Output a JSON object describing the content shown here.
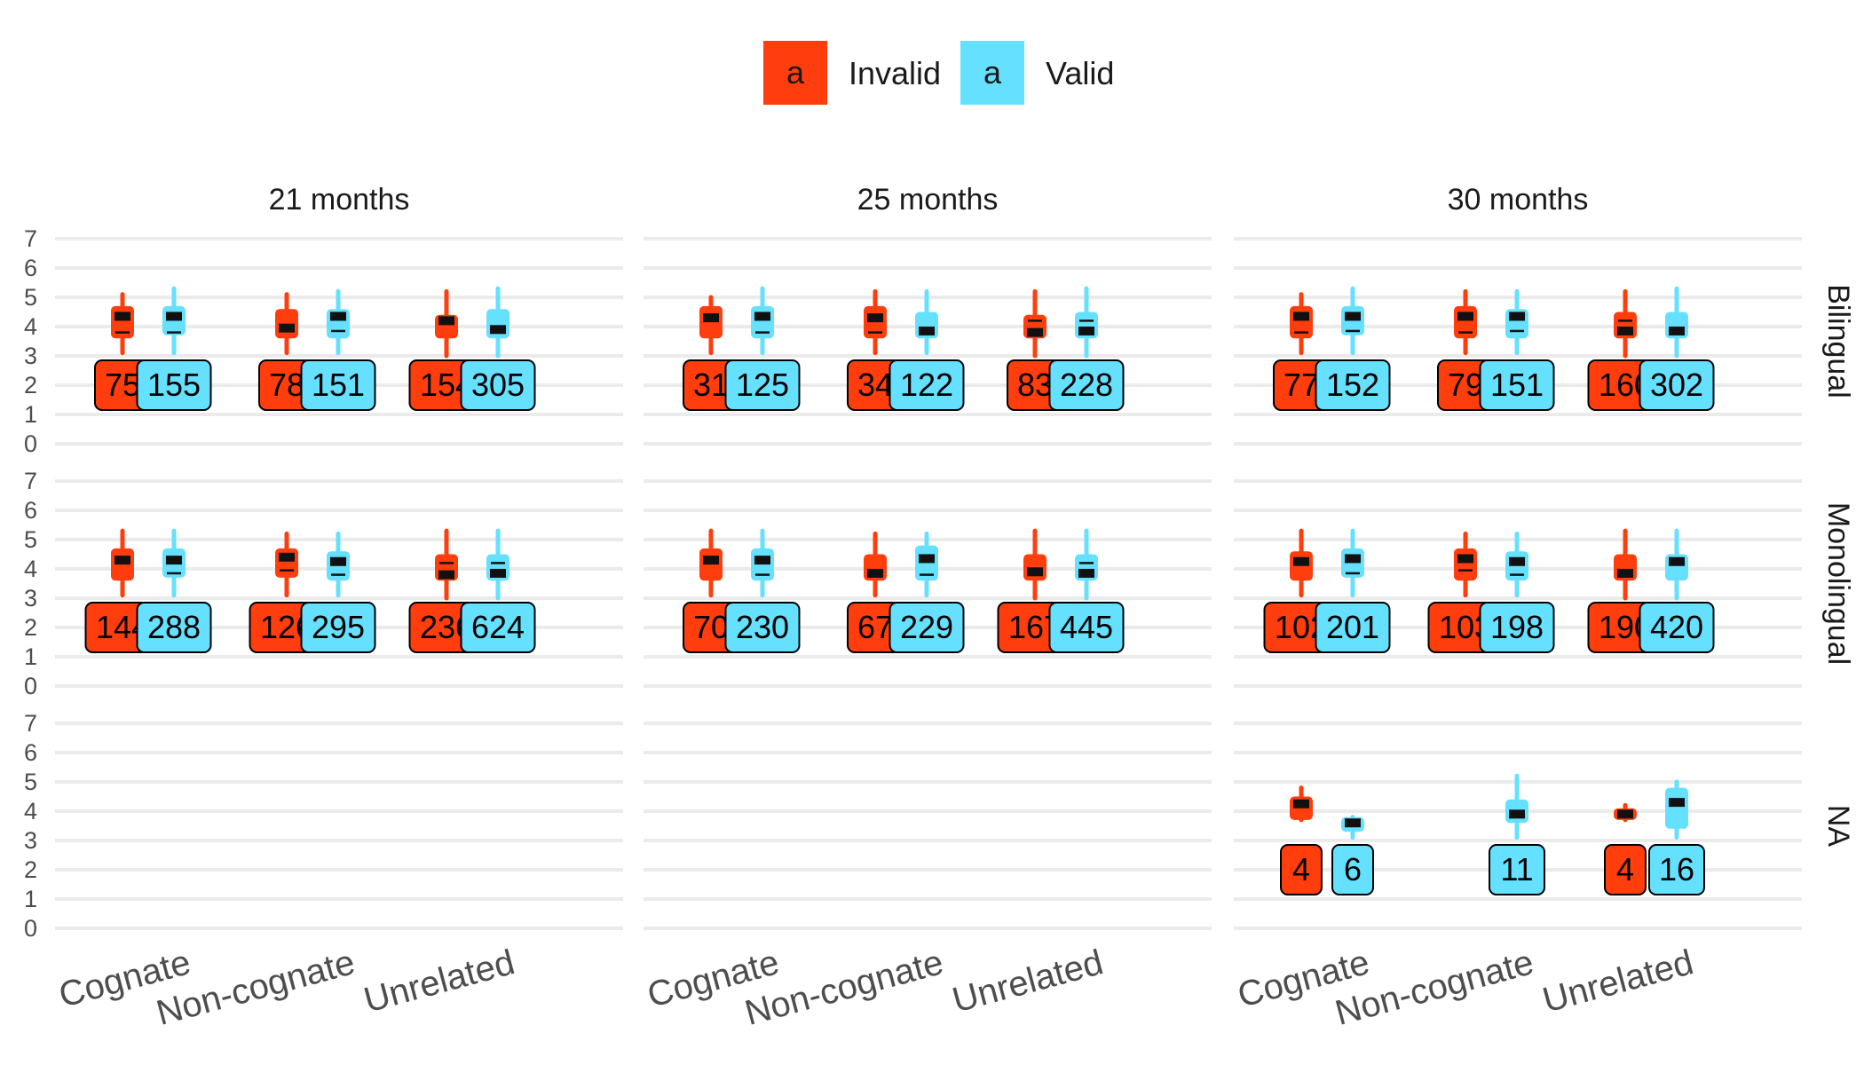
{
  "chart_data": {
    "type": "boxplot",
    "colors": {
      "Invalid": "#ff3d0d",
      "Valid": "#66e0ff"
    },
    "legend": {
      "position": "top",
      "key_label": "a",
      "entries": [
        "Invalid",
        "Valid"
      ]
    },
    "facet_cols": [
      "21 months",
      "25 months",
      "30 months"
    ],
    "facet_rows": [
      "Bilingual",
      "Monolingual",
      "NA"
    ],
    "categories": [
      "Cognate",
      "Non-cognate",
      "Unrelated"
    ],
    "y_ticks": [
      "0",
      "1",
      "2",
      "3",
      "4",
      "5",
      "6",
      "7"
    ],
    "ylim": [
      0,
      7
    ],
    "grid": true,
    "panels": [
      {
        "col": "21 months",
        "row": "Bilingual",
        "groups": [
          {
            "category": "Cognate",
            "condition": "Invalid",
            "n": "75",
            "whisker": [
              3.1,
              5.1
            ],
            "box": [
              3.6,
              4.7
            ],
            "median": 3.8,
            "mean": 4.35
          },
          {
            "category": "Cognate",
            "condition": "Valid",
            "n": "155",
            "whisker": [
              3.1,
              5.3
            ],
            "box": [
              3.7,
              4.7
            ],
            "median": 3.8,
            "mean": 4.35
          },
          {
            "category": "Non-cognate",
            "condition": "Invalid",
            "n": "78",
            "whisker": [
              3.1,
              5.1
            ],
            "box": [
              3.6,
              4.6
            ],
            "median": 3.9,
            "mean": 3.95
          },
          {
            "category": "Non-cognate",
            "condition": "Valid",
            "n": "151",
            "whisker": [
              3.1,
              5.2
            ],
            "box": [
              3.6,
              4.6
            ],
            "median": 3.85,
            "mean": 4.35
          },
          {
            "category": "Unrelated",
            "condition": "Invalid",
            "n": "154",
            "whisker": [
              3.0,
              5.2
            ],
            "box": [
              3.6,
              4.4
            ],
            "median": 4.2,
            "mean": 4.2
          },
          {
            "category": "Unrelated",
            "condition": "Valid",
            "n": "305",
            "whisker": [
              3.0,
              5.3
            ],
            "box": [
              3.6,
              4.6
            ],
            "median": 3.9,
            "mean": 3.9
          }
        ]
      },
      {
        "col": "25 months",
        "row": "Bilingual",
        "groups": [
          {
            "category": "Cognate",
            "condition": "Invalid",
            "n": "31",
            "whisker": [
              3.1,
              5.0
            ],
            "box": [
              3.6,
              4.7
            ],
            "median": 4.3,
            "mean": 4.3
          },
          {
            "category": "Cognate",
            "condition": "Valid",
            "n": "125",
            "whisker": [
              3.1,
              5.3
            ],
            "box": [
              3.6,
              4.7
            ],
            "median": 3.8,
            "mean": 4.35
          },
          {
            "category": "Non-cognate",
            "condition": "Invalid",
            "n": "34",
            "whisker": [
              3.1,
              5.2
            ],
            "box": [
              3.6,
              4.7
            ],
            "median": 3.8,
            "mean": 4.3
          },
          {
            "category": "Non-cognate",
            "condition": "Valid",
            "n": "122",
            "whisker": [
              3.1,
              5.2
            ],
            "box": [
              3.6,
              4.5
            ],
            "median": 3.85,
            "mean": 3.85
          },
          {
            "category": "Unrelated",
            "condition": "Invalid",
            "n": "83",
            "whisker": [
              3.0,
              5.2
            ],
            "box": [
              3.6,
              4.4
            ],
            "median": 4.2,
            "mean": 3.8
          },
          {
            "category": "Unrelated",
            "condition": "Valid",
            "n": "228",
            "whisker": [
              3.0,
              5.3
            ],
            "box": [
              3.6,
              4.5
            ],
            "median": 4.2,
            "mean": 3.85
          }
        ]
      },
      {
        "col": "30 months",
        "row": "Bilingual",
        "groups": [
          {
            "category": "Cognate",
            "condition": "Invalid",
            "n": "77",
            "whisker": [
              3.1,
              5.1
            ],
            "box": [
              3.6,
              4.7
            ],
            "median": 3.8,
            "mean": 4.35
          },
          {
            "category": "Cognate",
            "condition": "Valid",
            "n": "152",
            "whisker": [
              3.1,
              5.3
            ],
            "box": [
              3.7,
              4.7
            ],
            "median": 3.85,
            "mean": 4.35
          },
          {
            "category": "Non-cognate",
            "condition": "Invalid",
            "n": "79",
            "whisker": [
              3.1,
              5.2
            ],
            "box": [
              3.6,
              4.7
            ],
            "median": 3.8,
            "mean": 4.35
          },
          {
            "category": "Non-cognate",
            "condition": "Valid",
            "n": "151",
            "whisker": [
              3.1,
              5.2
            ],
            "box": [
              3.6,
              4.6
            ],
            "median": 3.85,
            "mean": 4.35
          },
          {
            "category": "Unrelated",
            "condition": "Invalid",
            "n": "160",
            "whisker": [
              3.0,
              5.2
            ],
            "box": [
              3.6,
              4.5
            ],
            "median": 4.2,
            "mean": 3.85
          },
          {
            "category": "Unrelated",
            "condition": "Valid",
            "n": "302",
            "whisker": [
              3.0,
              5.3
            ],
            "box": [
              3.6,
              4.5
            ],
            "median": 3.85,
            "mean": 3.85
          }
        ]
      },
      {
        "col": "21 months",
        "row": "Monolingual",
        "groups": [
          {
            "category": "Cognate",
            "condition": "Invalid",
            "n": "144",
            "whisker": [
              3.1,
              5.3
            ],
            "box": [
              3.6,
              4.7
            ],
            "median": 4.3,
            "mean": 4.3
          },
          {
            "category": "Cognate",
            "condition": "Valid",
            "n": "288",
            "whisker": [
              3.1,
              5.3
            ],
            "box": [
              3.7,
              4.7
            ],
            "median": 3.85,
            "mean": 4.3
          },
          {
            "category": "Non-cognate",
            "condition": "Invalid",
            "n": "126",
            "whisker": [
              3.1,
              5.2
            ],
            "box": [
              3.7,
              4.7
            ],
            "median": 3.95,
            "mean": 4.4
          },
          {
            "category": "Non-cognate",
            "condition": "Valid",
            "n": "295",
            "whisker": [
              3.1,
              5.2
            ],
            "box": [
              3.6,
              4.6
            ],
            "median": 3.8,
            "mean": 4.25
          },
          {
            "category": "Unrelated",
            "condition": "Invalid",
            "n": "236",
            "whisker": [
              3.0,
              5.3
            ],
            "box": [
              3.6,
              4.5
            ],
            "median": 4.2,
            "mean": 3.8
          },
          {
            "category": "Unrelated",
            "condition": "Valid",
            "n": "624",
            "whisker": [
              3.0,
              5.3
            ],
            "box": [
              3.6,
              4.5
            ],
            "median": 4.2,
            "mean": 3.85
          }
        ]
      },
      {
        "col": "25 months",
        "row": "Monolingual",
        "groups": [
          {
            "category": "Cognate",
            "condition": "Invalid",
            "n": "70",
            "whisker": [
              3.1,
              5.3
            ],
            "box": [
              3.6,
              4.7
            ],
            "median": 4.3,
            "mean": 4.3
          },
          {
            "category": "Cognate",
            "condition": "Valid",
            "n": "230",
            "whisker": [
              3.1,
              5.3
            ],
            "box": [
              3.6,
              4.7
            ],
            "median": 3.8,
            "mean": 4.3
          },
          {
            "category": "Non-cognate",
            "condition": "Invalid",
            "n": "67",
            "whisker": [
              3.1,
              5.2
            ],
            "box": [
              3.6,
              4.5
            ],
            "median": 3.85,
            "mean": 3.85
          },
          {
            "category": "Non-cognate",
            "condition": "Valid",
            "n": "229",
            "whisker": [
              3.1,
              5.2
            ],
            "box": [
              3.6,
              4.8
            ],
            "median": 3.8,
            "mean": 4.35
          },
          {
            "category": "Unrelated",
            "condition": "Invalid",
            "n": "167",
            "whisker": [
              3.0,
              5.3
            ],
            "box": [
              3.6,
              4.5
            ],
            "median": 3.9,
            "mean": 3.9
          },
          {
            "category": "Unrelated",
            "condition": "Valid",
            "n": "445",
            "whisker": [
              3.0,
              5.3
            ],
            "box": [
              3.6,
              4.5
            ],
            "median": 4.2,
            "mean": 3.85
          }
        ]
      },
      {
        "col": "30 months",
        "row": "Monolingual",
        "groups": [
          {
            "category": "Cognate",
            "condition": "Invalid",
            "n": "102",
            "whisker": [
              3.1,
              5.3
            ],
            "box": [
              3.6,
              4.6
            ],
            "median": 4.25,
            "mean": 4.25
          },
          {
            "category": "Cognate",
            "condition": "Valid",
            "n": "201",
            "whisker": [
              3.1,
              5.3
            ],
            "box": [
              3.7,
              4.7
            ],
            "median": 3.85,
            "mean": 4.35
          },
          {
            "category": "Non-cognate",
            "condition": "Invalid",
            "n": "103",
            "whisker": [
              3.1,
              5.2
            ],
            "box": [
              3.6,
              4.7
            ],
            "median": 3.95,
            "mean": 4.35
          },
          {
            "category": "Non-cognate",
            "condition": "Valid",
            "n": "198",
            "whisker": [
              3.1,
              5.2
            ],
            "box": [
              3.6,
              4.6
            ],
            "median": 3.8,
            "mean": 4.25
          },
          {
            "category": "Unrelated",
            "condition": "Invalid",
            "n": "190",
            "whisker": [
              3.0,
              5.3
            ],
            "box": [
              3.6,
              4.5
            ],
            "median": 3.85,
            "mean": 3.85
          },
          {
            "category": "Unrelated",
            "condition": "Valid",
            "n": "420",
            "whisker": [
              3.0,
              5.3
            ],
            "box": [
              3.6,
              4.5
            ],
            "median": 4.2,
            "mean": 4.25
          }
        ]
      },
      {
        "col": "21 months",
        "row": "NA",
        "groups": []
      },
      {
        "col": "25 months",
        "row": "NA",
        "groups": []
      },
      {
        "col": "30 months",
        "row": "NA",
        "groups": [
          {
            "category": "Cognate",
            "condition": "Invalid",
            "n": "4",
            "whisker": [
              3.7,
              4.8
            ],
            "box": [
              3.7,
              4.5
            ],
            "median": 4.25,
            "mean": 4.25
          },
          {
            "category": "Cognate",
            "condition": "Valid",
            "n": "6",
            "whisker": [
              3.1,
              3.8
            ],
            "box": [
              3.3,
              3.8
            ],
            "median": 3.6,
            "mean": 3.6
          },
          {
            "category": "Non-cognate",
            "condition": "Valid",
            "n": "11",
            "whisker": [
              3.1,
              5.2
            ],
            "box": [
              3.6,
              4.4
            ],
            "median": 3.9,
            "mean": 3.9
          },
          {
            "category": "Unrelated",
            "condition": "Invalid",
            "n": "4",
            "whisker": [
              3.7,
              4.2
            ],
            "box": [
              3.7,
              4.1
            ],
            "median": 3.9,
            "mean": 3.9
          },
          {
            "category": "Unrelated",
            "condition": "Valid",
            "n": "16",
            "whisker": [
              3.1,
              5.0
            ],
            "box": [
              3.4,
              4.8
            ],
            "median": 4.3,
            "mean": 4.3
          }
        ]
      }
    ]
  }
}
